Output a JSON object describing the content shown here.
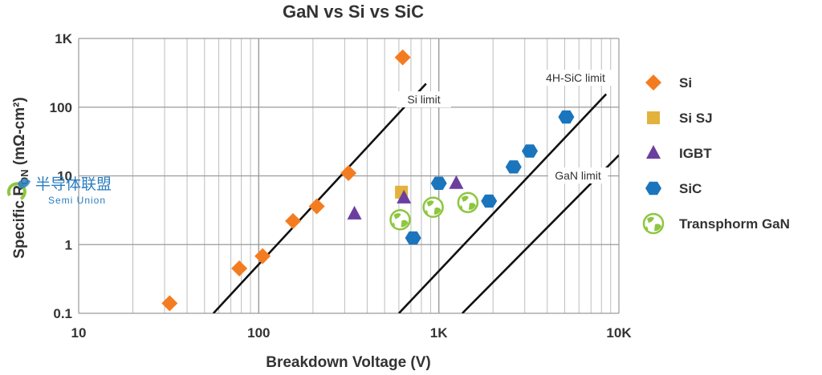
{
  "chart_data": {
    "type": "scatter",
    "title": "GaN vs Si vs SiC",
    "xlabel": "Breakdown Voltage (V)",
    "ylabel": "Specific R",
    "ylabel_sub": "ON",
    "ylabel_unit": " (mΩ-cm²)",
    "x_scale": "log",
    "y_scale": "log",
    "xlim": [
      10,
      10000
    ],
    "ylim": [
      0.1,
      1000
    ],
    "x_ticks": [
      {
        "value": 10,
        "label": "10"
      },
      {
        "value": 100,
        "label": "100"
      },
      {
        "value": 1000,
        "label": "1K"
      },
      {
        "value": 10000,
        "label": "10K"
      }
    ],
    "y_ticks": [
      {
        "value": 0.1,
        "label": "0.1"
      },
      {
        "value": 1,
        "label": "1"
      },
      {
        "value": 10,
        "label": "10"
      },
      {
        "value": 100,
        "label": "100"
      },
      {
        "value": 1000,
        "label": "1K"
      }
    ],
    "grid": true,
    "legend_position": "right",
    "limit_lines": [
      {
        "name": "Si limit",
        "from": [
          56,
          0.1
        ],
        "to": [
          850,
          220
        ]
      },
      {
        "name": "4H-SiC limit",
        "from": [
          600,
          0.1
        ],
        "to": [
          8500,
          155
        ]
      },
      {
        "name": "GaN limit",
        "from": [
          1350,
          0.1
        ],
        "to": [
          10000,
          20
        ]
      }
    ],
    "series": [
      {
        "name": "Si",
        "marker": "diamond",
        "color": "#f47c20",
        "points": [
          [
            32,
            0.14
          ],
          [
            78,
            0.45
          ],
          [
            105,
            0.68
          ],
          [
            155,
            2.2
          ],
          [
            210,
            3.6
          ],
          [
            315,
            11
          ],
          [
            630,
            530
          ]
        ]
      },
      {
        "name": "Si SJ",
        "marker": "square",
        "color": "#e3b23c",
        "points": [
          [
            620,
            5.8
          ]
        ]
      },
      {
        "name": "IGBT",
        "marker": "triangle",
        "color": "#6b3fa0",
        "points": [
          [
            340,
            2.8
          ],
          [
            640,
            4.8
          ],
          [
            1250,
            7.8
          ]
        ]
      },
      {
        "name": "SiC",
        "marker": "hexagon",
        "color": "#1a75bc",
        "points": [
          [
            720,
            1.25
          ],
          [
            1000,
            7.8
          ],
          [
            1900,
            4.3
          ],
          [
            2600,
            13.5
          ],
          [
            3200,
            23
          ],
          [
            5100,
            72
          ]
        ]
      },
      {
        "name": "Transphorm GaN",
        "marker": "globe",
        "color": "#8dc63f",
        "points": [
          [
            610,
            2.3
          ],
          [
            930,
            3.5
          ],
          [
            1450,
            4.1
          ]
        ]
      }
    ]
  },
  "watermark": {
    "text_cn": "半导体联盟",
    "text_en": "Semi  Union"
  }
}
